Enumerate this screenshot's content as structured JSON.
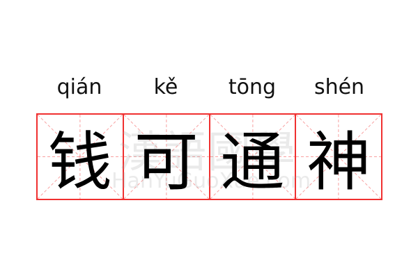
{
  "idiom": {
    "pinyin": [
      "qián",
      "kě",
      "tōng",
      "shén"
    ],
    "characters": [
      "钱",
      "可",
      "通",
      "神"
    ]
  },
  "watermark": {
    "chinese": "漢語國學",
    "latin": "HanYuGuoXue.com"
  },
  "colors": {
    "grid": "#f03030",
    "guide": "#f8a0a0",
    "text": "#000000"
  }
}
